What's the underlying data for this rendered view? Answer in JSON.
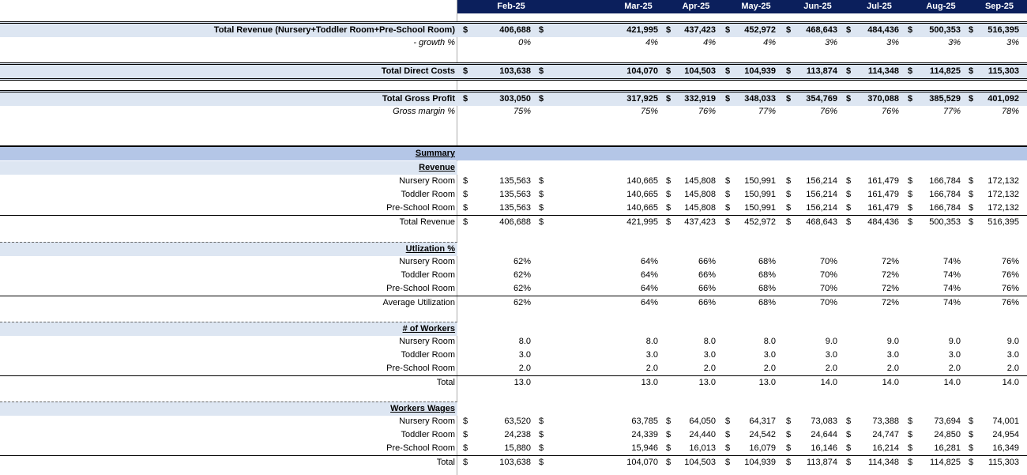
{
  "columns": [
    "Feb-25",
    "",
    "Mar-25",
    "Apr-25",
    "May-25",
    "Jun-25",
    "Jul-25",
    "Aug-25",
    "Sep-25"
  ],
  "currency_symbol": "$",
  "summary_header": {
    "total_revenue_label": "Total Revenue (Nursery+Toddler Room+Pre-School Room)",
    "total_revenue": [
      "406,688",
      "",
      "421,995",
      "437,423",
      "452,972",
      "468,643",
      "484,436",
      "500,353",
      "516,395"
    ],
    "growth_label": "- growth %",
    "growth": [
      "0%",
      "",
      "4%",
      "4%",
      "4%",
      "3%",
      "3%",
      "3%",
      "3%"
    ],
    "total_direct_costs_label": "Total Direct Costs",
    "total_direct_costs": [
      "103,638",
      "",
      "104,070",
      "104,503",
      "104,939",
      "113,874",
      "114,348",
      "114,825",
      "115,303"
    ],
    "total_gross_profit_label": "Total Gross Profit",
    "total_gross_profit": [
      "303,050",
      "",
      "317,925",
      "332,919",
      "348,033",
      "354,769",
      "370,088",
      "385,529",
      "401,092"
    ],
    "gross_margin_label": "Gross margin %",
    "gross_margin": [
      "75%",
      "",
      "75%",
      "76%",
      "77%",
      "76%",
      "76%",
      "77%",
      "78%"
    ]
  },
  "summary_title": "Summary",
  "revenue": {
    "title": "Revenue",
    "rows": [
      {
        "label": "Nursery Room",
        "values": [
          "135,563",
          "",
          "140,665",
          "145,808",
          "150,991",
          "156,214",
          "161,479",
          "166,784",
          "172,132"
        ]
      },
      {
        "label": "Toddler Room",
        "values": [
          "135,563",
          "",
          "140,665",
          "145,808",
          "150,991",
          "156,214",
          "161,479",
          "166,784",
          "172,132"
        ]
      },
      {
        "label": "Pre-School Room",
        "values": [
          "135,563",
          "",
          "140,665",
          "145,808",
          "150,991",
          "156,214",
          "161,479",
          "166,784",
          "172,132"
        ]
      }
    ],
    "total_label": "Total Revenue",
    "total": [
      "406,688",
      "",
      "421,995",
      "437,423",
      "452,972",
      "468,643",
      "484,436",
      "500,353",
      "516,395"
    ]
  },
  "utilization": {
    "title": "Utlization %",
    "rows": [
      {
        "label": "Nursery Room",
        "values": [
          "62%",
          "",
          "64%",
          "66%",
          "68%",
          "70%",
          "72%",
          "74%",
          "76%"
        ]
      },
      {
        "label": "Toddler Room",
        "values": [
          "62%",
          "",
          "64%",
          "66%",
          "68%",
          "70%",
          "72%",
          "74%",
          "76%"
        ]
      },
      {
        "label": "Pre-School Room",
        "values": [
          "62%",
          "",
          "64%",
          "66%",
          "68%",
          "70%",
          "72%",
          "74%",
          "76%"
        ]
      }
    ],
    "total_label": "Average Utilization",
    "total": [
      "62%",
      "",
      "64%",
      "66%",
      "68%",
      "70%",
      "72%",
      "74%",
      "76%"
    ]
  },
  "workers": {
    "title": "# of Workers",
    "rows": [
      {
        "label": "Nursery Room",
        "values": [
          "8.0",
          "",
          "8.0",
          "8.0",
          "8.0",
          "9.0",
          "9.0",
          "9.0",
          "9.0"
        ]
      },
      {
        "label": "Toddler Room",
        "values": [
          "3.0",
          "",
          "3.0",
          "3.0",
          "3.0",
          "3.0",
          "3.0",
          "3.0",
          "3.0"
        ]
      },
      {
        "label": "Pre-School Room",
        "values": [
          "2.0",
          "",
          "2.0",
          "2.0",
          "2.0",
          "2.0",
          "2.0",
          "2.0",
          "2.0"
        ]
      }
    ],
    "total_label": "Total",
    "total": [
      "13.0",
      "",
      "13.0",
      "13.0",
      "13.0",
      "14.0",
      "14.0",
      "14.0",
      "14.0"
    ]
  },
  "wages": {
    "title": "Workers Wages",
    "rows": [
      {
        "label": "Nursery Room",
        "values": [
          "63,520",
          "",
          "63,785",
          "64,050",
          "64,317",
          "73,083",
          "73,388",
          "73,694",
          "74,001"
        ]
      },
      {
        "label": "Toddler Room",
        "values": [
          "24,238",
          "",
          "24,339",
          "24,440",
          "24,542",
          "24,644",
          "24,747",
          "24,850",
          "24,954"
        ]
      },
      {
        "label": "Pre-School Room",
        "values": [
          "15,880",
          "",
          "15,946",
          "16,013",
          "16,079",
          "16,146",
          "16,214",
          "16,281",
          "16,349"
        ]
      }
    ],
    "total_label": "Total",
    "total": [
      "103,638",
      "",
      "104,070",
      "104,503",
      "104,939",
      "113,874",
      "114,348",
      "114,825",
      "115,303"
    ]
  }
}
